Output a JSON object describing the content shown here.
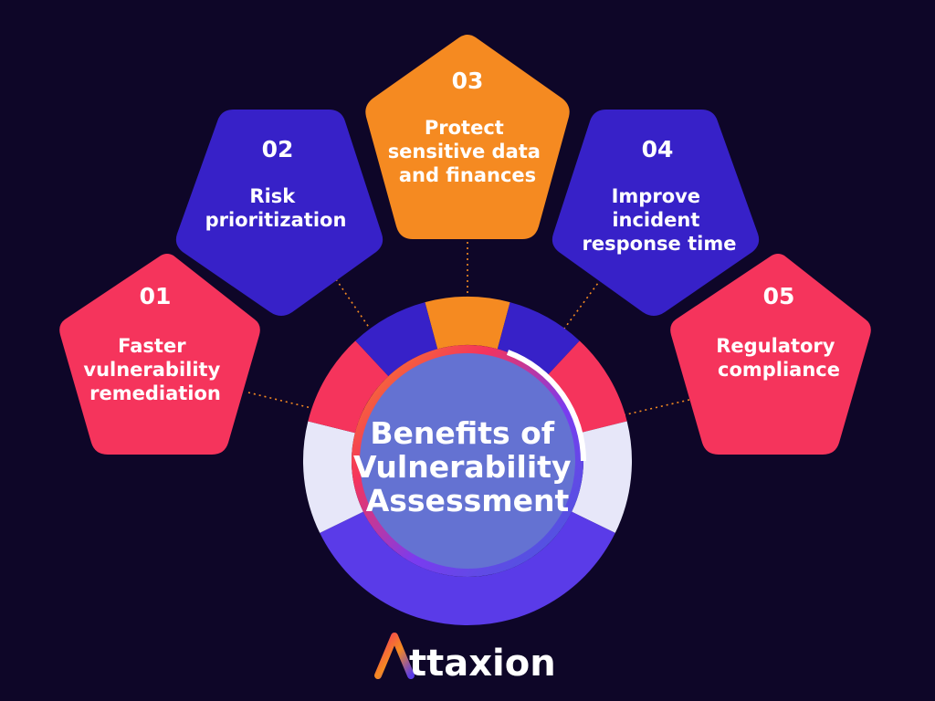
{
  "center": {
    "title_lines": [
      "Benefits of",
      "Vulnerability",
      "Assessment"
    ]
  },
  "benefits": [
    {
      "number": "01",
      "lines": [
        "Faster",
        "vulnerability",
        "remediation"
      ],
      "color": "#f5345c"
    },
    {
      "number": "02",
      "lines": [
        "Risk",
        "prioritization"
      ],
      "color": "#3721c8"
    },
    {
      "number": "03",
      "lines": [
        "Protect",
        "sensitive data",
        "and finances"
      ],
      "color": "#f58a21"
    },
    {
      "number": "04",
      "lines": [
        "Improve",
        "incident",
        "response time"
      ],
      "color": "#3721c8"
    },
    {
      "number": "05",
      "lines": [
        "Regulatory",
        "compliance"
      ],
      "color": "#f5345c"
    }
  ],
  "brand": {
    "logo_icon": "attaxion-a-logo-icon",
    "rest_of_name": "ttaxion"
  },
  "colors": {
    "background": "#0e0628",
    "red": "#f5345c",
    "blue": "#3721c8",
    "orange": "#f58a21",
    "light": "#e7e7f9",
    "purple": "#5a3be8",
    "center": "#6472d2"
  }
}
